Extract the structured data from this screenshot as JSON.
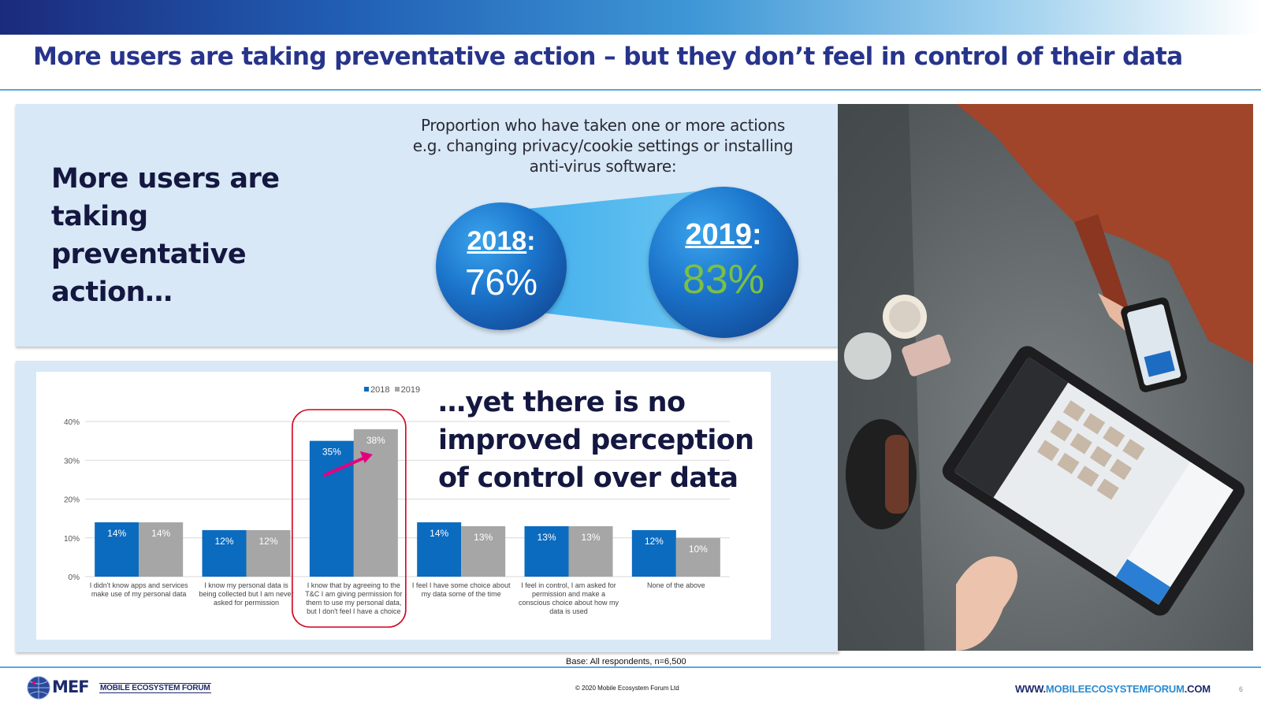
{
  "slide": {
    "title": "More users are taking preventative action – but they don’t feel in control of their data"
  },
  "top_panel": {
    "left_heading": "More users are taking preventative action…",
    "proportion_text_lines": [
      "Proportion who have taken one or more actions",
      "e.g. changing privacy/cookie settings or installing",
      "anti-virus software:"
    ],
    "bubble_2018": {
      "year": "2018",
      "colon": ":",
      "value": "76%"
    },
    "bubble_2019": {
      "year": "2019",
      "colon": ":",
      "value": "83%"
    }
  },
  "bottom_panel": {
    "right_heading": "…yet there is no improved perception of control over data"
  },
  "chart_data": {
    "type": "bar",
    "categories": [
      [
        "I didn't know apps and services",
        "make use of my personal data"
      ],
      [
        "I know my personal data is",
        "being collected but I am never",
        "asked for permission"
      ],
      [
        "I know that by agreeing to the",
        "T&C I am giving permission for",
        "them to use my personal data,",
        "but I don't feel I have a choice"
      ],
      [
        "I feel I have some choice about",
        "my data some of the time"
      ],
      [
        "I feel in control, I am asked for",
        "permission and make a",
        "conscious choice about how my",
        "data is used"
      ],
      [
        "None of the above"
      ]
    ],
    "series": [
      {
        "name": "2018",
        "values": [
          14,
          12,
          35,
          14,
          13,
          12
        ],
        "labels": [
          "14%",
          "12%",
          "35%",
          "14%",
          "13%",
          "12%"
        ],
        "color": "#0b6bbf"
      },
      {
        "name": "2019",
        "values": [
          14,
          12,
          38,
          13,
          13,
          10
        ],
        "labels": [
          "14%",
          "12%",
          "38%",
          "13%",
          "13%",
          "10%"
        ],
        "color": "#a6a6a6"
      }
    ],
    "y_ticks": [
      "0%",
      "10%",
      "20%",
      "30%",
      "40%"
    ],
    "ylim": [
      0,
      40
    ],
    "highlight_category_index": 2,
    "highlight_color": "#d0021b",
    "arrow_color": "#e6007e",
    "legend_position": "top-center"
  },
  "footer": {
    "base_note": "Base: All respondents, n=6,500",
    "logo_text": "MEF",
    "logo_subtitle": "MOBILE ECOSYSTEM FORUM",
    "copyright": "© 2020 Mobile Ecosystem Forum Ltd",
    "website_prefix": "WWW.",
    "website_highlight": "MOBILEECOSYSTEMFORUM",
    "website_suffix": ".COM",
    "page_number": "6"
  },
  "colors": {
    "title": "#27348b",
    "panel_bg": "#d8e8f6",
    "dark_text": "#14173f",
    "green_value": "#7bc043"
  }
}
